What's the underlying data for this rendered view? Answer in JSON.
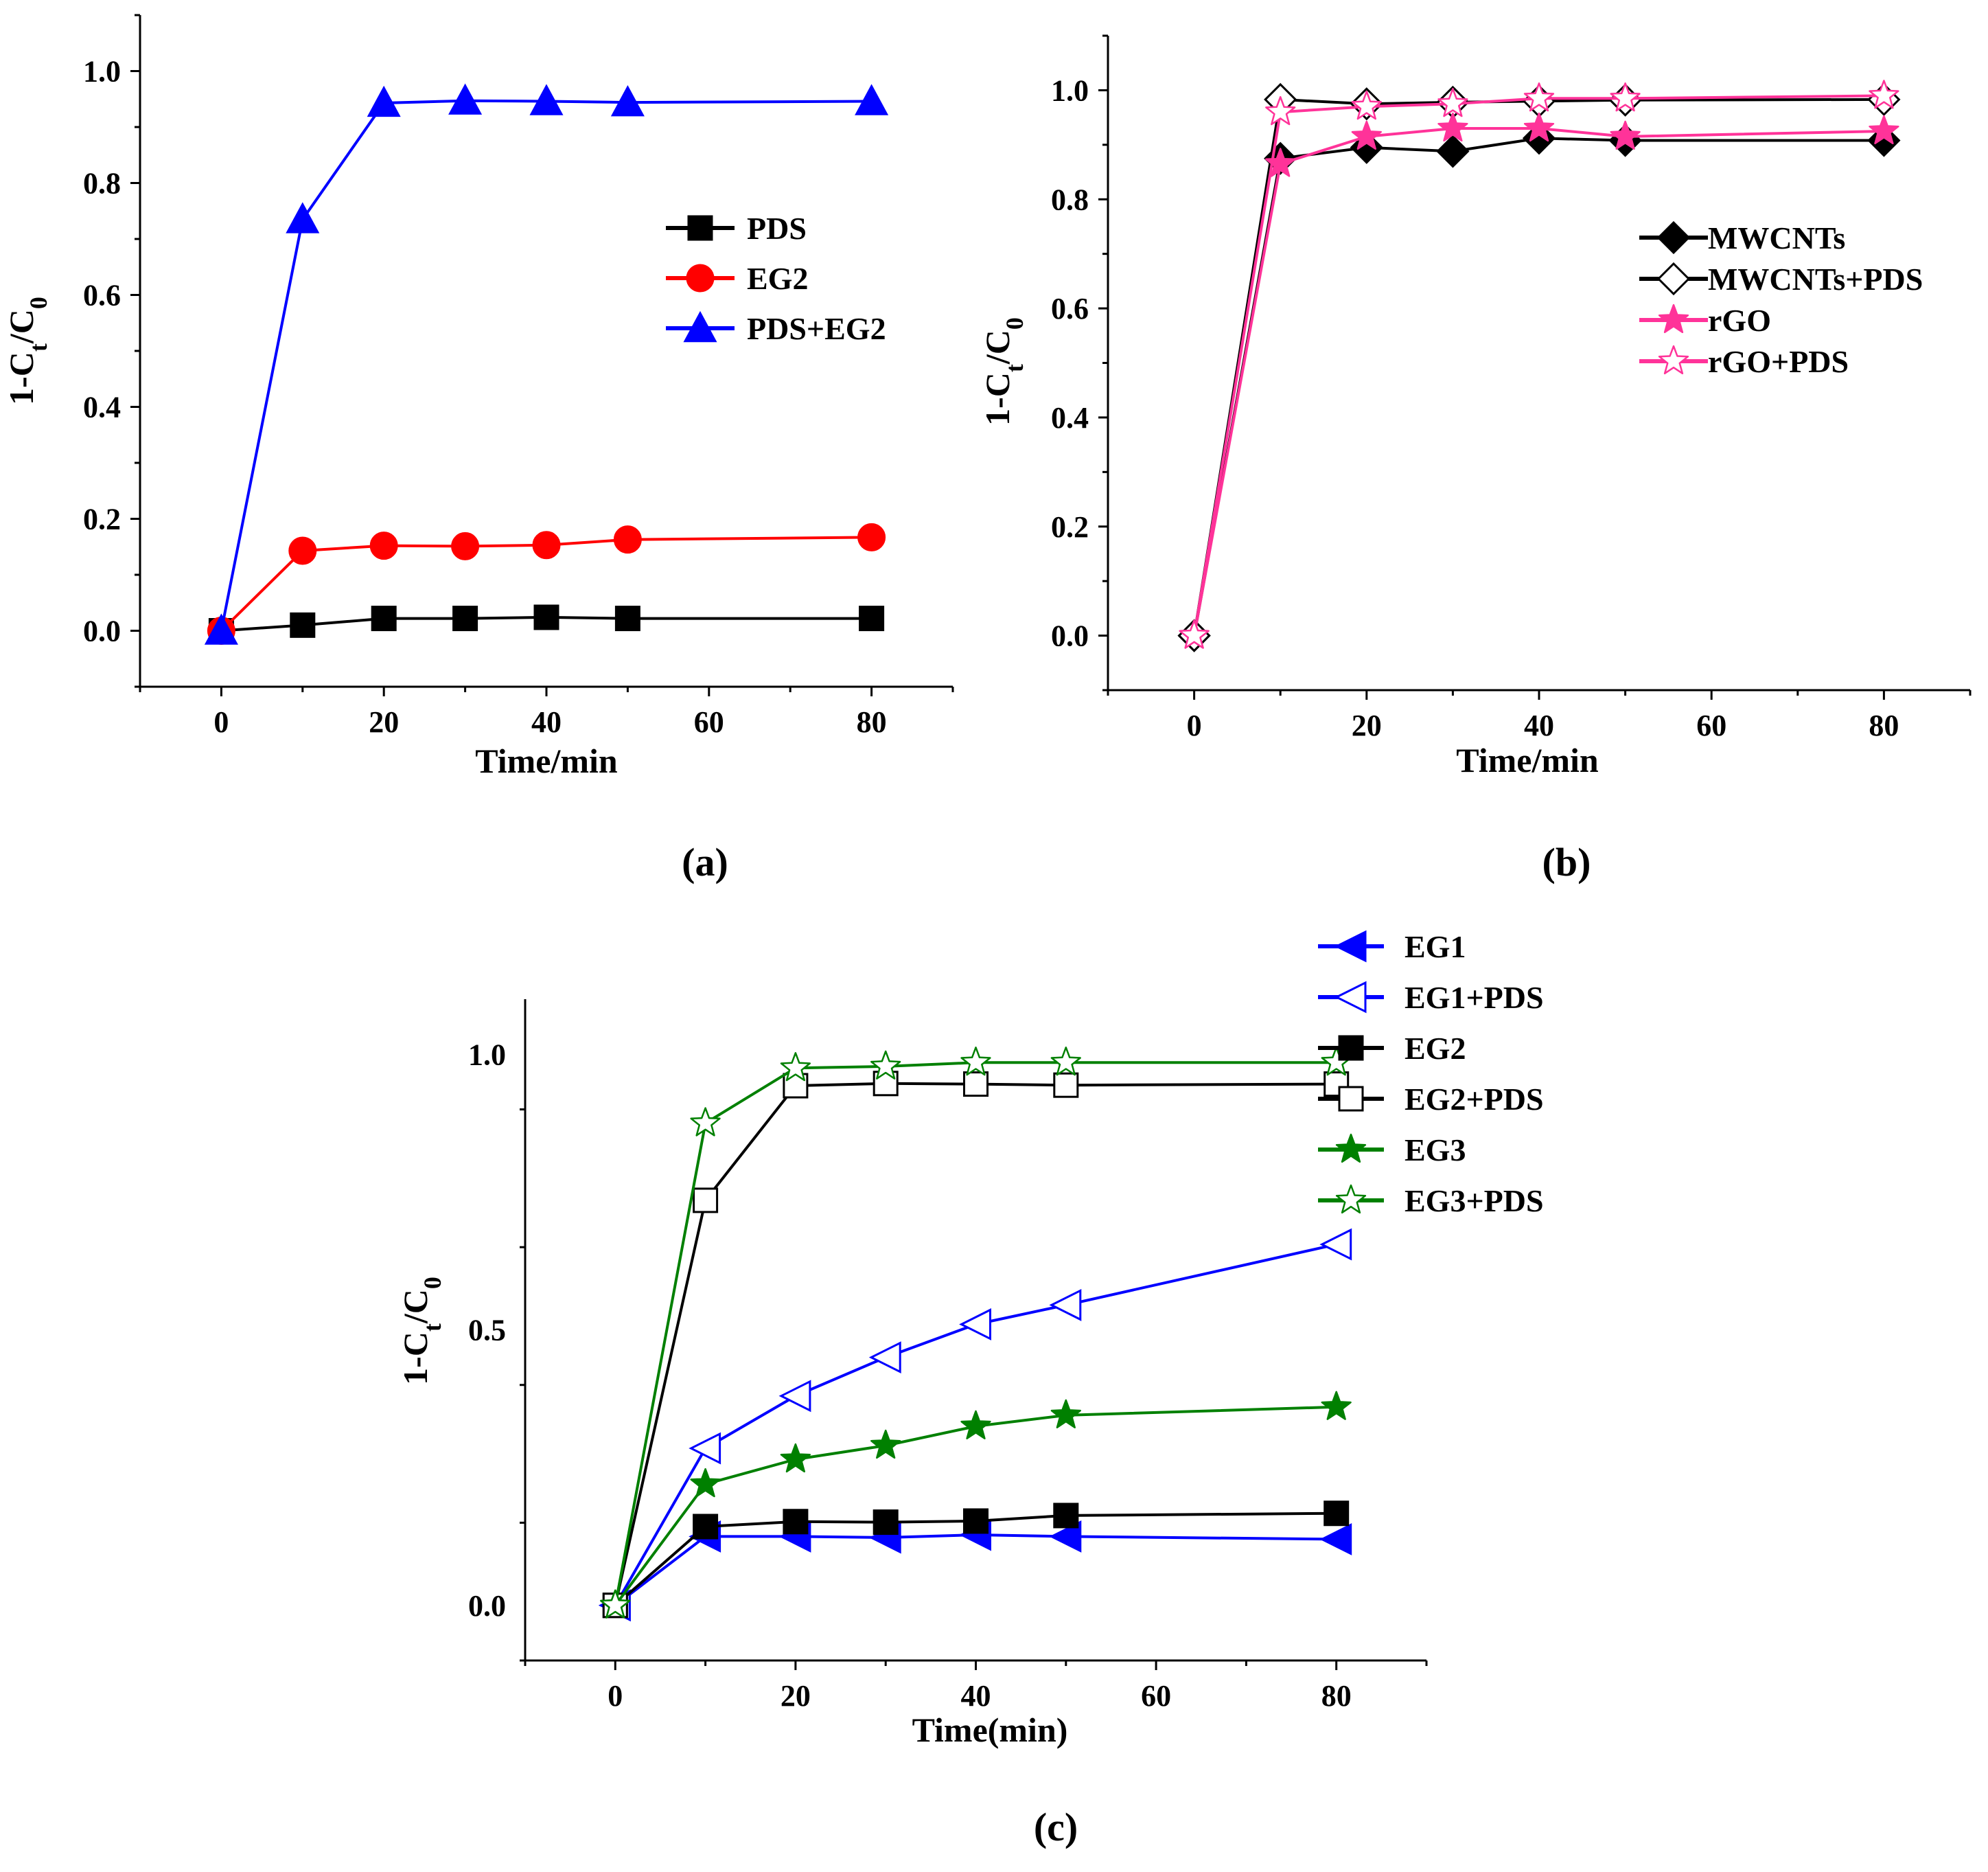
{
  "chart_data": [
    {
      "panel": "(a)",
      "type": "line",
      "xlabel": "Time/min",
      "ylabel": "1-C_t/C_0",
      "xlim": [
        -10,
        90
      ],
      "ylim": [
        -0.1,
        1.1
      ],
      "xticks": [
        0,
        20,
        40,
        60,
        80
      ],
      "xtick_labels": [
        "0",
        "20",
        "40",
        "60",
        "80"
      ],
      "yticks": [
        0.0,
        0.2,
        0.4,
        0.6,
        0.8,
        1.0
      ],
      "ytick_labels": [
        "0.0",
        "0.2",
        "0.4",
        "0.6",
        "0.8",
        "1.0"
      ],
      "legend_position": "upper-right",
      "series": [
        {
          "name": "PDS",
          "color": "#000000",
          "marker": "square-filled",
          "x": [
            0,
            10,
            20,
            30,
            40,
            50,
            80
          ],
          "values": [
            0.0,
            0.01,
            0.022,
            0.022,
            0.024,
            0.022,
            0.022
          ]
        },
        {
          "name": "EG2",
          "color": "#ff0000",
          "marker": "circle-filled",
          "x": [
            0,
            10,
            20,
            30,
            40,
            50,
            80
          ],
          "values": [
            0.0,
            0.143,
            0.152,
            0.151,
            0.153,
            0.163,
            0.167
          ]
        },
        {
          "name": "PDS+EG2",
          "color": "#0000ff",
          "marker": "triangle-filled",
          "x": [
            0,
            10,
            20,
            30,
            40,
            50,
            80
          ],
          "values": [
            0.0,
            0.735,
            0.943,
            0.947,
            0.946,
            0.944,
            0.946
          ]
        }
      ]
    },
    {
      "panel": "(b)",
      "type": "line",
      "xlabel": "Time/min",
      "ylabel": "1-C_t/C_0",
      "xlim": [
        -10,
        90
      ],
      "ylim": [
        -0.1,
        1.1
      ],
      "xticks": [
        0,
        20,
        40,
        60,
        80
      ],
      "xtick_labels": [
        "0",
        "20",
        "40",
        "60",
        "80"
      ],
      "yticks": [
        0.0,
        0.2,
        0.4,
        0.6,
        0.8,
        1.0
      ],
      "ytick_labels": [
        "0.0",
        "0.2",
        "0.4",
        "0.6",
        "0.8",
        "1.0"
      ],
      "legend_position": "center-right",
      "series": [
        {
          "name": "MWCNTs",
          "color": "#000000",
          "marker": "diamond-filled",
          "x": [
            0,
            10,
            20,
            30,
            40,
            50,
            80
          ],
          "values": [
            0.0,
            0.875,
            0.895,
            0.888,
            0.912,
            0.908,
            0.908
          ]
        },
        {
          "name": "MWCNTs+PDS",
          "color": "#000000",
          "marker": "diamond-open",
          "x": [
            0,
            10,
            20,
            30,
            40,
            50,
            80
          ],
          "values": [
            0.0,
            0.983,
            0.975,
            0.978,
            0.98,
            0.982,
            0.983
          ]
        },
        {
          "name": "rGO",
          "color": "#ff3399",
          "marker": "star-filled",
          "x": [
            0,
            10,
            20,
            30,
            40,
            50,
            80
          ],
          "values": [
            0.0,
            0.865,
            0.915,
            0.93,
            0.93,
            0.915,
            0.925
          ]
        },
        {
          "name": "rGO+PDS",
          "color": "#ff3399",
          "marker": "star-open",
          "x": [
            0,
            10,
            20,
            30,
            40,
            50,
            80
          ],
          "values": [
            0.0,
            0.96,
            0.97,
            0.975,
            0.985,
            0.985,
            0.99
          ]
        }
      ]
    },
    {
      "panel": "(c)",
      "type": "line",
      "xlabel": "Time(min)",
      "ylabel": "1-C_t/C_0",
      "xlim": [
        -10,
        90
      ],
      "ylim": [
        -0.1,
        1.1
      ],
      "xticks": [
        0,
        20,
        40,
        60,
        80
      ],
      "xtick_labels": [
        "0",
        "20",
        "40",
        "60",
        "80"
      ],
      "yticks": [
        0.0,
        0.5,
        1.0
      ],
      "ytick_labels": [
        "0.0",
        "0.5",
        "1.0"
      ],
      "legend_position": "top-right",
      "series": [
        {
          "name": "EG1",
          "color": "#0000ff",
          "marker": "left-triangle-filled",
          "x": [
            0,
            10,
            20,
            30,
            40,
            50,
            80
          ],
          "values": [
            0.0,
            0.125,
            0.125,
            0.123,
            0.128,
            0.125,
            0.12
          ]
        },
        {
          "name": "EG1+PDS",
          "color": "#0000ff",
          "marker": "left-triangle-open",
          "x": [
            0,
            10,
            20,
            30,
            40,
            50,
            80
          ],
          "values": [
            0.0,
            0.285,
            0.38,
            0.45,
            0.51,
            0.545,
            0.655
          ]
        },
        {
          "name": "EG2",
          "color": "#000000",
          "marker": "square-filled",
          "x": [
            0,
            10,
            20,
            30,
            40,
            50,
            80
          ],
          "values": [
            0.0,
            0.143,
            0.152,
            0.151,
            0.153,
            0.163,
            0.167
          ]
        },
        {
          "name": "EG2+PDS",
          "color": "#000000",
          "marker": "square-open",
          "x": [
            0,
            10,
            20,
            30,
            40,
            50,
            80
          ],
          "values": [
            0.0,
            0.735,
            0.943,
            0.947,
            0.946,
            0.944,
            0.946
          ]
        },
        {
          "name": "EG3",
          "color": "#008000",
          "marker": "star-filled",
          "x": [
            0,
            10,
            20,
            30,
            40,
            50,
            80
          ],
          "values": [
            0.0,
            0.22,
            0.265,
            0.29,
            0.325,
            0.345,
            0.36
          ]
        },
        {
          "name": "EG3+PDS",
          "color": "#008000",
          "marker": "star-open",
          "x": [
            0,
            10,
            20,
            30,
            40,
            50,
            80
          ],
          "values": [
            0.0,
            0.875,
            0.975,
            0.978,
            0.985,
            0.985,
            0.985
          ]
        }
      ]
    }
  ]
}
